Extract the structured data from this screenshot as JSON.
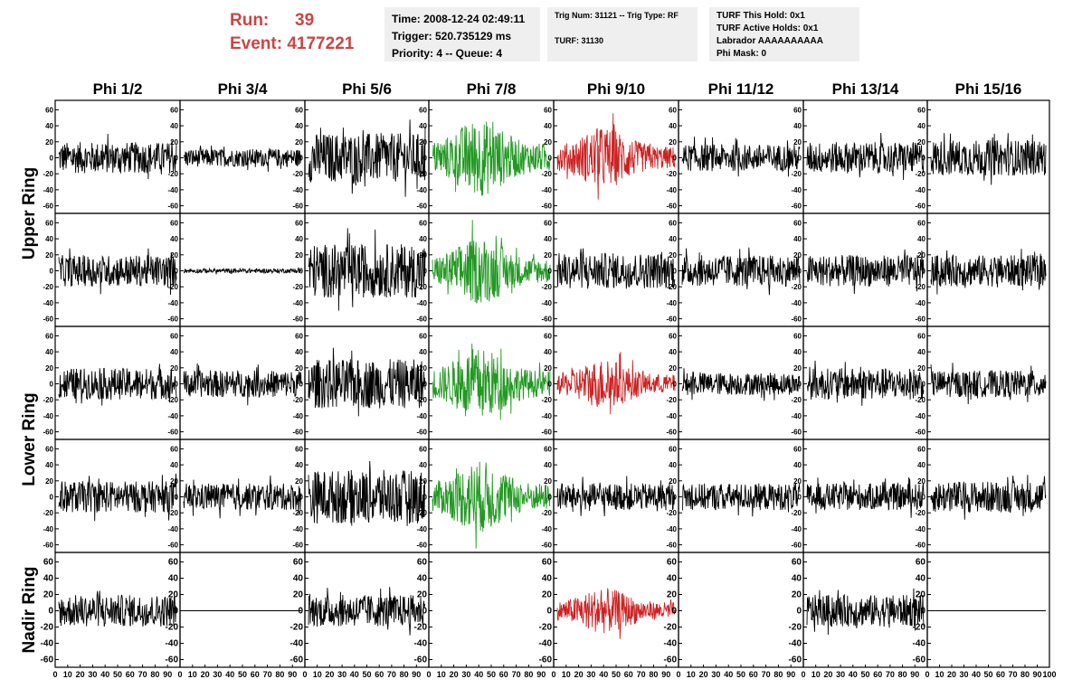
{
  "header": {
    "run_label": "Run:",
    "run_value": "39",
    "event_label": "Event:",
    "event_value": "4177221"
  },
  "info_boxes": {
    "time": "Time: 2008-12-24 02:49:11",
    "trigger": "Trigger: 520.735129 ms",
    "priority": "Priority: 4 -- Queue: 4",
    "trig_num": "Trig Num: 31121 -- Trig Type: RF",
    "turf": "TURF: 31130",
    "turf_hold": "TURF This Hold: 0x1",
    "turf_active": "TURF Active Holds: 0x1",
    "labrador": "Labrador AAAAAAAAAA",
    "phi_mask": "Phi Mask: 0"
  },
  "colors": {
    "normal": "#000000",
    "triggered_green": "#229922",
    "triggered_red": "#cc2222",
    "run_text": "#cc4444",
    "info_bg": "#efefef"
  },
  "chart_data": {
    "type": "line",
    "columns": [
      "Phi 1/2",
      "Phi 3/4",
      "Phi 5/6",
      "Phi 7/8",
      "Phi 9/10",
      "Phi 11/12",
      "Phi 13/14",
      "Phi 15/16"
    ],
    "row_groups": [
      {
        "label": "Upper Ring",
        "rows": [
          0,
          1
        ]
      },
      {
        "label": "Lower Ring",
        "rows": [
          2,
          3
        ]
      },
      {
        "label": "Nadir Ring",
        "rows": [
          4
        ]
      }
    ],
    "ylim": [
      -65,
      65
    ],
    "y_ticks": [
      -60,
      -40,
      -20,
      0,
      20,
      40,
      60
    ],
    "xlim": [
      0,
      100
    ],
    "x_ticks": [
      0,
      10,
      20,
      30,
      40,
      50,
      60,
      70,
      80,
      90,
      100
    ],
    "grid": false,
    "panels": [
      [
        {
          "amp": 14,
          "color": "normal"
        },
        {
          "amp": 8,
          "color": "normal"
        },
        {
          "amp": 22,
          "color": "normal"
        },
        {
          "amp": 28,
          "color": "green",
          "burst": true
        },
        {
          "amp": 22,
          "color": "red",
          "burst": true
        },
        {
          "amp": 12,
          "color": "normal"
        },
        {
          "amp": 14,
          "color": "normal"
        },
        {
          "amp": 16,
          "color": "normal"
        }
      ],
      [
        {
          "amp": 14,
          "color": "normal"
        },
        {
          "amp": 2,
          "color": "normal"
        },
        {
          "amp": 24,
          "color": "normal"
        },
        {
          "amp": 24,
          "color": "green",
          "burst": true
        },
        {
          "amp": 16,
          "color": "normal"
        },
        {
          "amp": 14,
          "color": "normal"
        },
        {
          "amp": 14,
          "color": "normal"
        },
        {
          "amp": 14,
          "color": "normal"
        }
      ],
      [
        {
          "amp": 14,
          "color": "normal"
        },
        {
          "amp": 12,
          "color": "normal"
        },
        {
          "amp": 22,
          "color": "normal"
        },
        {
          "amp": 26,
          "color": "green",
          "burst": true
        },
        {
          "amp": 18,
          "color": "red",
          "burst": true
        },
        {
          "amp": 10,
          "color": "normal"
        },
        {
          "amp": 14,
          "color": "normal"
        },
        {
          "amp": 12,
          "color": "normal"
        }
      ],
      [
        {
          "amp": 14,
          "color": "normal"
        },
        {
          "amp": 12,
          "color": "normal"
        },
        {
          "amp": 24,
          "color": "normal"
        },
        {
          "amp": 26,
          "color": "green",
          "burst": true
        },
        {
          "amp": 12,
          "color": "normal"
        },
        {
          "amp": 12,
          "color": "normal"
        },
        {
          "amp": 12,
          "color": "normal"
        },
        {
          "amp": 14,
          "color": "normal"
        }
      ],
      [
        {
          "amp": 14,
          "color": "normal"
        },
        {
          "amp": 0,
          "color": "normal",
          "flat": true
        },
        {
          "amp": 14,
          "color": "normal"
        },
        {
          "amp": null
        },
        {
          "amp": 16,
          "color": "red",
          "burst": true
        },
        {
          "amp": null
        },
        {
          "amp": 14,
          "color": "normal"
        },
        {
          "amp": 0,
          "color": "normal",
          "flat": true
        }
      ]
    ]
  }
}
